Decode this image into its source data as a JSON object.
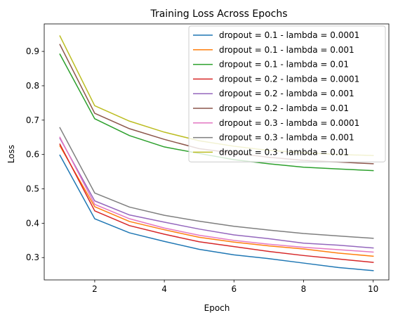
{
  "chart_data": {
    "type": "line",
    "title": "Training Loss Across Epochs",
    "xlabel": "Epoch",
    "ylabel": "Loss",
    "xlim": [
      0.55,
      10.45
    ],
    "ylim": [
      0.235,
      0.98
    ],
    "xticks": [
      2,
      4,
      6,
      8,
      10
    ],
    "yticks": [
      0.3,
      0.4,
      0.5,
      0.6,
      0.7,
      0.8,
      0.9
    ],
    "xtick_labels": [
      "2",
      "4",
      "6",
      "8",
      "10"
    ],
    "ytick_labels": [
      "0.3",
      "0.4",
      "0.5",
      "0.6",
      "0.7",
      "0.8",
      "0.9"
    ],
    "grid": false,
    "legend_position": "top-right",
    "x": [
      1,
      2,
      3,
      4,
      5,
      6,
      7,
      8,
      9,
      10
    ],
    "series": [
      {
        "name": "dropout = 0.1 - lambda = 0.0001",
        "color": "#1f77b4",
        "values": [
          0.598,
          0.413,
          0.372,
          0.347,
          0.324,
          0.308,
          0.297,
          0.284,
          0.271,
          0.262
        ]
      },
      {
        "name": "dropout = 0.1 - lambda = 0.001",
        "color": "#ff7f0e",
        "values": [
          0.625,
          0.448,
          0.405,
          0.381,
          0.359,
          0.345,
          0.334,
          0.325,
          0.313,
          0.304
        ]
      },
      {
        "name": "dropout = 0.1 - lambda = 0.01",
        "color": "#2ca02c",
        "values": [
          0.892,
          0.704,
          0.655,
          0.622,
          0.603,
          0.585,
          0.573,
          0.563,
          0.558,
          0.553
        ]
      },
      {
        "name": "dropout = 0.2 - lambda = 0.0001",
        "color": "#d62728",
        "values": [
          0.63,
          0.436,
          0.393,
          0.368,
          0.346,
          0.332,
          0.318,
          0.306,
          0.296,
          0.286
        ]
      },
      {
        "name": "dropout = 0.2 - lambda = 0.001",
        "color": "#9467bd",
        "values": [
          0.647,
          0.465,
          0.424,
          0.403,
          0.383,
          0.366,
          0.355,
          0.342,
          0.336,
          0.328
        ]
      },
      {
        "name": "dropout = 0.2 - lambda = 0.01",
        "color": "#8c564b",
        "values": [
          0.92,
          0.72,
          0.675,
          0.644,
          0.617,
          0.604,
          0.592,
          0.583,
          0.578,
          0.573
        ]
      },
      {
        "name": "dropout = 0.3 - lambda = 0.0001",
        "color": "#e377c2",
        "values": [
          0.65,
          0.455,
          0.413,
          0.386,
          0.365,
          0.35,
          0.339,
          0.33,
          0.323,
          0.316
        ]
      },
      {
        "name": "dropout = 0.3 - lambda = 0.001",
        "color": "#7f7f7f",
        "values": [
          0.678,
          0.488,
          0.447,
          0.423,
          0.406,
          0.391,
          0.38,
          0.37,
          0.363,
          0.356
        ]
      },
      {
        "name": "dropout = 0.3 - lambda = 0.01",
        "color": "#bcbd22",
        "values": [
          0.945,
          0.742,
          0.697,
          0.665,
          0.64,
          0.624,
          0.612,
          0.605,
          0.6,
          0.597
        ]
      }
    ]
  }
}
